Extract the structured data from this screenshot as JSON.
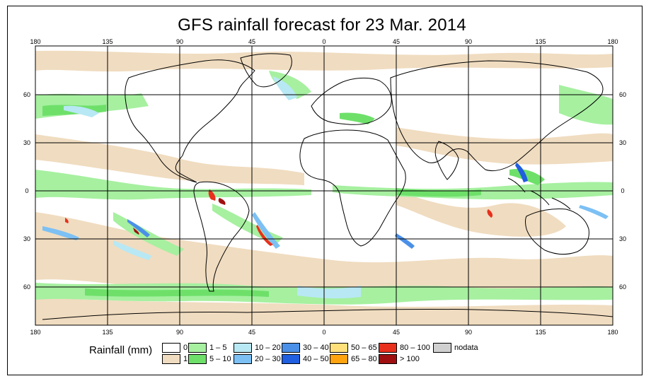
{
  "title": "GFS rainfall forecast for 23 Mar. 2014",
  "axes": {
    "lon_ticks": [
      "180",
      "135",
      "90",
      "45",
      "0",
      "45",
      "90",
      "135",
      "180"
    ],
    "lat_ticks": [
      "60",
      "30",
      "0",
      "30",
      "60"
    ]
  },
  "legend": {
    "title": "Rainfall (mm)",
    "items": [
      {
        "label": "0",
        "color": "#ffffff"
      },
      {
        "label": "1",
        "color": "#f0dcc0"
      },
      {
        "label": "1 – 5",
        "color": "#a6f0a0"
      },
      {
        "label": "5 – 10",
        "color": "#6ee06a"
      },
      {
        "label": "10 – 20",
        "color": "#b8e8f4"
      },
      {
        "label": "20 – 30",
        "color": "#7cc0f4"
      },
      {
        "label": "30 – 40",
        "color": "#4a90e8"
      },
      {
        "label": "40 – 50",
        "color": "#1f5fe0"
      },
      {
        "label": "50 – 65",
        "color": "#ffe07a"
      },
      {
        "label": "65 – 80",
        "color": "#ffa40f"
      },
      {
        "label": "80 – 100",
        "color": "#e8301c"
      },
      {
        "label": "> 100",
        "color": "#a01010"
      },
      {
        "label": "nodata",
        "color": "#d0d0d0"
      }
    ]
  }
}
